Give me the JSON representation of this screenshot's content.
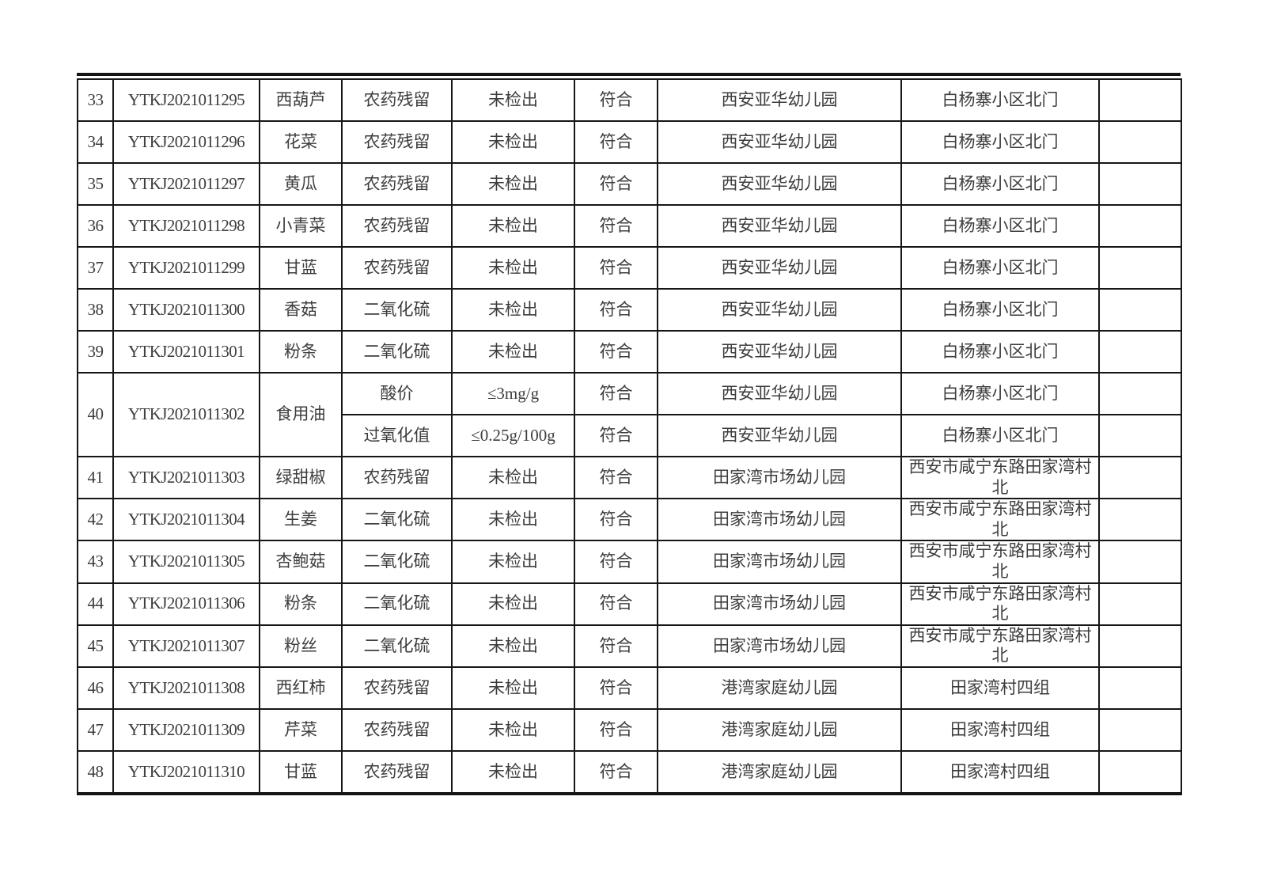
{
  "page": {
    "background_color": "#ffffff",
    "border_color": "#161616",
    "text_color_cn": "#3d3d3d",
    "text_color_id": "#0a0a0a"
  },
  "table": {
    "rows": [
      {
        "no": "33",
        "sample_id": "YTKJ2021011295",
        "sample_name": "西葫芦",
        "tests": [
          {
            "item": "农药残留",
            "result": "未检出",
            "conclusion": "符合",
            "org": "西安亚华幼儿园",
            "address": "白杨寨小区北门",
            "remark": ""
          }
        ]
      },
      {
        "no": "34",
        "sample_id": "YTKJ2021011296",
        "sample_name": "花菜",
        "tests": [
          {
            "item": "农药残留",
            "result": "未检出",
            "conclusion": "符合",
            "org": "西安亚华幼儿园",
            "address": "白杨寨小区北门",
            "remark": ""
          }
        ]
      },
      {
        "no": "35",
        "sample_id": "YTKJ2021011297",
        "sample_name": "黄瓜",
        "tests": [
          {
            "item": "农药残留",
            "result": "未检出",
            "conclusion": "符合",
            "org": "西安亚华幼儿园",
            "address": "白杨寨小区北门",
            "remark": ""
          }
        ]
      },
      {
        "no": "36",
        "sample_id": "YTKJ2021011298",
        "sample_name": "小青菜",
        "tests": [
          {
            "item": "农药残留",
            "result": "未检出",
            "conclusion": "符合",
            "org": "西安亚华幼儿园",
            "address": "白杨寨小区北门",
            "remark": ""
          }
        ]
      },
      {
        "no": "37",
        "sample_id": "YTKJ2021011299",
        "sample_name": "甘蓝",
        "tests": [
          {
            "item": "农药残留",
            "result": "未检出",
            "conclusion": "符合",
            "org": "西安亚华幼儿园",
            "address": "白杨寨小区北门",
            "remark": ""
          }
        ]
      },
      {
        "no": "38",
        "sample_id": "YTKJ2021011300",
        "sample_name": "香菇",
        "tests": [
          {
            "item": "二氧化硫",
            "result": "未检出",
            "conclusion": "符合",
            "org": "西安亚华幼儿园",
            "address": "白杨寨小区北门",
            "remark": ""
          }
        ]
      },
      {
        "no": "39",
        "sample_id": "YTKJ2021011301",
        "sample_name": "粉条",
        "tests": [
          {
            "item": "二氧化硫",
            "result": "未检出",
            "conclusion": "符合",
            "org": "西安亚华幼儿园",
            "address": "白杨寨小区北门",
            "remark": ""
          }
        ]
      },
      {
        "no": "40",
        "sample_id": "YTKJ2021011302",
        "sample_name": "食用油",
        "tests": [
          {
            "item": "酸价",
            "result": "≤3mg/g",
            "conclusion": "符合",
            "org": "西安亚华幼儿园",
            "address": "白杨寨小区北门",
            "remark": ""
          },
          {
            "item": "过氧化值",
            "result": "≤0.25g/100g",
            "conclusion": "符合",
            "org": "西安亚华幼儿园",
            "address": "白杨寨小区北门",
            "remark": ""
          }
        ]
      },
      {
        "no": "41",
        "sample_id": "YTKJ2021011303",
        "sample_name": "绿甜椒",
        "tests": [
          {
            "item": "农药残留",
            "result": "未检出",
            "conclusion": "符合",
            "org": "田家湾市场幼儿园",
            "address": "西安市咸宁东路田家湾村北",
            "remark": ""
          }
        ]
      },
      {
        "no": "42",
        "sample_id": "YTKJ2021011304",
        "sample_name": "生姜",
        "tests": [
          {
            "item": "二氧化硫",
            "result": "未检出",
            "conclusion": "符合",
            "org": "田家湾市场幼儿园",
            "address": "西安市咸宁东路田家湾村北",
            "remark": ""
          }
        ]
      },
      {
        "no": "43",
        "sample_id": "YTKJ2021011305",
        "sample_name": "杏鲍菇",
        "tests": [
          {
            "item": "二氧化硫",
            "result": "未检出",
            "conclusion": "符合",
            "org": "田家湾市场幼儿园",
            "address": "西安市咸宁东路田家湾村北",
            "remark": ""
          }
        ]
      },
      {
        "no": "44",
        "sample_id": "YTKJ2021011306",
        "sample_name": "粉条",
        "tests": [
          {
            "item": "二氧化硫",
            "result": "未检出",
            "conclusion": "符合",
            "org": "田家湾市场幼儿园",
            "address": "西安市咸宁东路田家湾村北",
            "remark": ""
          }
        ]
      },
      {
        "no": "45",
        "sample_id": "YTKJ2021011307",
        "sample_name": "粉丝",
        "tests": [
          {
            "item": "二氧化硫",
            "result": "未检出",
            "conclusion": "符合",
            "org": "田家湾市场幼儿园",
            "address": "西安市咸宁东路田家湾村北",
            "remark": ""
          }
        ]
      },
      {
        "no": "46",
        "sample_id": "YTKJ2021011308",
        "sample_name": "西红柿",
        "tests": [
          {
            "item": "农药残留",
            "result": "未检出",
            "conclusion": "符合",
            "org": "港湾家庭幼儿园",
            "address": "田家湾村四组",
            "remark": ""
          }
        ]
      },
      {
        "no": "47",
        "sample_id": "YTKJ2021011309",
        "sample_name": "芹菜",
        "tests": [
          {
            "item": "农药残留",
            "result": "未检出",
            "conclusion": "符合",
            "org": "港湾家庭幼儿园",
            "address": "田家湾村四组",
            "remark": ""
          }
        ]
      },
      {
        "no": "48",
        "sample_id": "YTKJ2021011310",
        "sample_name": "甘蓝",
        "tests": [
          {
            "item": "农药残留",
            "result": "未检出",
            "conclusion": "符合",
            "org": "港湾家庭幼儿园",
            "address": "田家湾村四组",
            "remark": ""
          }
        ]
      }
    ]
  }
}
